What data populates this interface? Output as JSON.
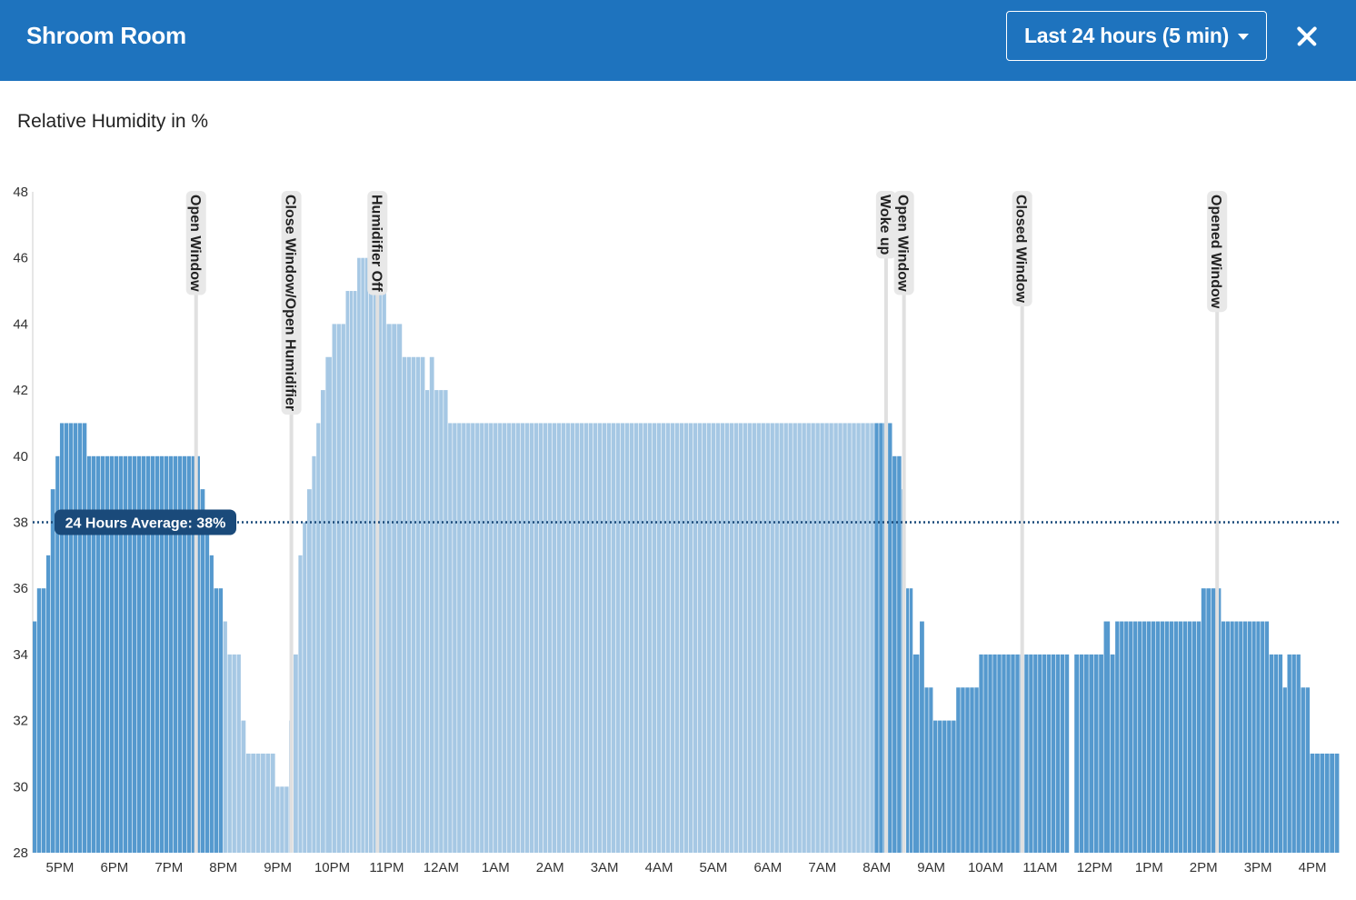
{
  "header": {
    "title": "Shroom Room",
    "range_label": "Last 24 hours (5 min)",
    "close_icon": "close-icon"
  },
  "colors": {
    "header_bg": "#1e73be",
    "bar_dark": "#5599ce",
    "bar_light": "#a6c8e4",
    "average_line": "#1a4a7a",
    "annotation_line": "#e0e0e0"
  },
  "chart_data": {
    "type": "bar",
    "ylabel": "Relative Humidity in %",
    "ylim": [
      28,
      48
    ],
    "yticks": [
      28,
      30,
      32,
      34,
      36,
      38,
      40,
      42,
      44,
      46,
      48
    ],
    "x_start_hour": 16.5,
    "x_end_hour": 40.5,
    "xticks": [
      {
        "hour": 17,
        "label": "5PM"
      },
      {
        "hour": 18,
        "label": "6PM"
      },
      {
        "hour": 19,
        "label": "7PM"
      },
      {
        "hour": 20,
        "label": "8PM"
      },
      {
        "hour": 21,
        "label": "9PM"
      },
      {
        "hour": 22,
        "label": "10PM"
      },
      {
        "hour": 23,
        "label": "11PM"
      },
      {
        "hour": 24,
        "label": "12AM"
      },
      {
        "hour": 25,
        "label": "1AM"
      },
      {
        "hour": 26,
        "label": "2AM"
      },
      {
        "hour": 27,
        "label": "3AM"
      },
      {
        "hour": 28,
        "label": "4AM"
      },
      {
        "hour": 29,
        "label": "5AM"
      },
      {
        "hour": 30,
        "label": "6AM"
      },
      {
        "hour": 31,
        "label": "7AM"
      },
      {
        "hour": 32,
        "label": "8AM"
      },
      {
        "hour": 33,
        "label": "9AM"
      },
      {
        "hour": 34,
        "label": "10AM"
      },
      {
        "hour": 35,
        "label": "11AM"
      },
      {
        "hour": 36,
        "label": "12PM"
      },
      {
        "hour": 37,
        "label": "1PM"
      },
      {
        "hour": 38,
        "label": "2PM"
      },
      {
        "hour": 39,
        "label": "3PM"
      },
      {
        "hour": 40,
        "label": "4PM"
      }
    ],
    "average": {
      "value": 38,
      "label": "24 Hours Average: 38%"
    },
    "segments": [
      {
        "start": 16.5,
        "end": 16.58,
        "value": 35,
        "shade": "dark"
      },
      {
        "start": 16.58,
        "end": 16.75,
        "value": 36,
        "shade": "dark"
      },
      {
        "start": 16.75,
        "end": 16.83,
        "value": 37,
        "shade": "dark"
      },
      {
        "start": 16.83,
        "end": 16.92,
        "value": 39,
        "shade": "dark"
      },
      {
        "start": 16.92,
        "end": 17.0,
        "value": 40,
        "shade": "dark"
      },
      {
        "start": 17.0,
        "end": 17.5,
        "value": 41,
        "shade": "dark"
      },
      {
        "start": 17.5,
        "end": 19.58,
        "value": 40,
        "shade": "dark"
      },
      {
        "start": 19.58,
        "end": 19.67,
        "value": 39,
        "shade": "dark"
      },
      {
        "start": 19.67,
        "end": 19.75,
        "value": 38,
        "shade": "dark"
      },
      {
        "start": 19.75,
        "end": 19.83,
        "value": 37,
        "shade": "dark"
      },
      {
        "start": 19.83,
        "end": 20.0,
        "value": 36,
        "shade": "dark"
      },
      {
        "start": 20.0,
        "end": 20.08,
        "value": 35,
        "shade": "light"
      },
      {
        "start": 20.08,
        "end": 20.33,
        "value": 34,
        "shade": "light"
      },
      {
        "start": 20.33,
        "end": 20.42,
        "value": 32,
        "shade": "light"
      },
      {
        "start": 20.42,
        "end": 20.96,
        "value": 31,
        "shade": "light"
      },
      {
        "start": 20.96,
        "end": 21.21,
        "value": 30,
        "shade": "light"
      },
      {
        "start": 21.21,
        "end": 21.29,
        "value": 32,
        "shade": "light"
      },
      {
        "start": 21.29,
        "end": 21.38,
        "value": 34,
        "shade": "light"
      },
      {
        "start": 21.38,
        "end": 21.46,
        "value": 37,
        "shade": "light"
      },
      {
        "start": 21.46,
        "end": 21.54,
        "value": 38,
        "shade": "light"
      },
      {
        "start": 21.54,
        "end": 21.63,
        "value": 39,
        "shade": "light"
      },
      {
        "start": 21.63,
        "end": 21.71,
        "value": 40,
        "shade": "light"
      },
      {
        "start": 21.71,
        "end": 21.79,
        "value": 41,
        "shade": "light"
      },
      {
        "start": 21.79,
        "end": 21.88,
        "value": 42,
        "shade": "light"
      },
      {
        "start": 21.88,
        "end": 22.0,
        "value": 43,
        "shade": "light"
      },
      {
        "start": 22.0,
        "end": 22.25,
        "value": 44,
        "shade": "light"
      },
      {
        "start": 22.25,
        "end": 22.46,
        "value": 45,
        "shade": "light"
      },
      {
        "start": 22.46,
        "end": 22.67,
        "value": 46,
        "shade": "light"
      },
      {
        "start": 22.67,
        "end": 23.0,
        "value": 45,
        "shade": "light"
      },
      {
        "start": 23.0,
        "end": 23.29,
        "value": 44,
        "shade": "light"
      },
      {
        "start": 23.29,
        "end": 23.71,
        "value": 43,
        "shade": "light"
      },
      {
        "start": 23.71,
        "end": 23.79,
        "value": 42,
        "shade": "light"
      },
      {
        "start": 23.79,
        "end": 23.88,
        "value": 43,
        "shade": "light"
      },
      {
        "start": 23.88,
        "end": 24.13,
        "value": 42,
        "shade": "light"
      },
      {
        "start": 24.13,
        "end": 31.96,
        "value": 41,
        "shade": "light"
      },
      {
        "start": 31.96,
        "end": 32.29,
        "value": 41,
        "shade": "dark"
      },
      {
        "start": 32.29,
        "end": 32.46,
        "value": 40,
        "shade": "dark"
      },
      {
        "start": 32.46,
        "end": 32.54,
        "value": 39,
        "shade": "dark"
      },
      {
        "start": 32.54,
        "end": 32.67,
        "value": 36,
        "shade": "dark"
      },
      {
        "start": 32.67,
        "end": 32.79,
        "value": 34,
        "shade": "dark"
      },
      {
        "start": 32.79,
        "end": 32.88,
        "value": 35,
        "shade": "dark"
      },
      {
        "start": 32.88,
        "end": 33.04,
        "value": 33,
        "shade": "dark"
      },
      {
        "start": 33.04,
        "end": 33.46,
        "value": 32,
        "shade": "dark"
      },
      {
        "start": 33.46,
        "end": 33.88,
        "value": 33,
        "shade": "dark"
      },
      {
        "start": 33.88,
        "end": 34.63,
        "value": 34,
        "shade": "dark"
      },
      {
        "start": 34.63,
        "end": 35.54,
        "value": 34,
        "shade": "dark"
      },
      {
        "start": 35.63,
        "end": 36.17,
        "value": 34,
        "shade": "dark"
      },
      {
        "start": 36.17,
        "end": 36.29,
        "value": 35,
        "shade": "dark"
      },
      {
        "start": 36.29,
        "end": 36.38,
        "value": 34,
        "shade": "dark"
      },
      {
        "start": 36.38,
        "end": 37.96,
        "value": 35,
        "shade": "dark"
      },
      {
        "start": 37.96,
        "end": 38.33,
        "value": 36,
        "shade": "dark"
      },
      {
        "start": 38.33,
        "end": 39.21,
        "value": 35,
        "shade": "dark"
      },
      {
        "start": 39.21,
        "end": 39.46,
        "value": 34,
        "shade": "dark"
      },
      {
        "start": 39.46,
        "end": 39.54,
        "value": 33,
        "shade": "dark"
      },
      {
        "start": 39.54,
        "end": 39.79,
        "value": 34,
        "shade": "dark"
      },
      {
        "start": 39.79,
        "end": 39.96,
        "value": 33,
        "shade": "dark"
      },
      {
        "start": 39.96,
        "end": 40.5,
        "value": 31,
        "shade": "dark"
      }
    ],
    "annotations": [
      {
        "hour": 19.5,
        "label": "Open Window"
      },
      {
        "hour": 21.25,
        "label": "Close Window/Open Humidifier"
      },
      {
        "hour": 22.83,
        "label": "Humidifier Off"
      },
      {
        "hour": 32.17,
        "label": "Woke up"
      },
      {
        "hour": 32.5,
        "label": "Open Window"
      },
      {
        "hour": 34.67,
        "label": "Closed Window"
      },
      {
        "hour": 38.25,
        "label": "Opened Window"
      }
    ]
  }
}
